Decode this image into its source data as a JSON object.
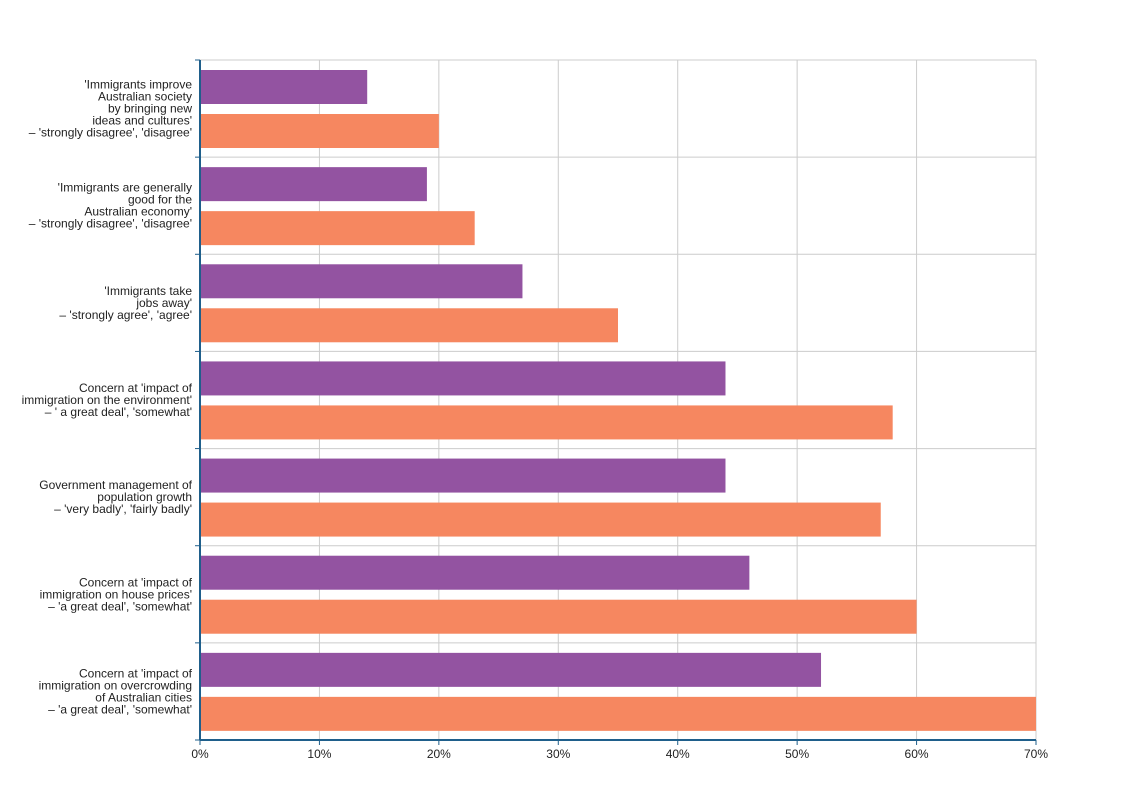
{
  "chart_data": {
    "type": "bar",
    "orientation": "horizontal",
    "categories": [
      [
        "'Immigrants improve",
        "Australian society",
        "by bringing new",
        "ideas and cultures'",
        "– 'strongly disagree', 'disagree'"
      ],
      [
        "'Immigrants are generally",
        "good for the",
        "Australian economy'",
        "– 'strongly disagree', 'disagree'"
      ],
      [
        "'Immigrants take",
        "jobs away'",
        "– 'strongly agree', 'agree'"
      ],
      [
        "Concern at 'impact of",
        "immigration on the environment'",
        "– ' a great deal', 'somewhat'"
      ],
      [
        "Government management of",
        "population growth",
        "– 'very badly', 'fairly badly'"
      ],
      [
        "Concern at 'impact of",
        "immigration on house prices'",
        "– 'a great deal', 'somewhat'"
      ],
      [
        "Concern at 'impact of",
        "immigration on overcrowding",
        "of Australian cities",
        "– 'a great deal', 'somewhat'"
      ]
    ],
    "series": [
      {
        "color": "#9353a1",
        "values": [
          14,
          19,
          27,
          44,
          44,
          46,
          52
        ]
      },
      {
        "color": "#f68760",
        "values": [
          20,
          23,
          35,
          58,
          57,
          60,
          70
        ]
      }
    ],
    "xlim": [
      0,
      70
    ],
    "x_ticks": [
      0,
      10,
      20,
      30,
      40,
      50,
      60,
      70
    ],
    "x_tick_labels": [
      "0%",
      "10%",
      "20%",
      "30%",
      "40%",
      "50%",
      "60%",
      "70%"
    ],
    "grid": true,
    "legend": "none",
    "title": "",
    "xlabel": "",
    "ylabel": ""
  }
}
